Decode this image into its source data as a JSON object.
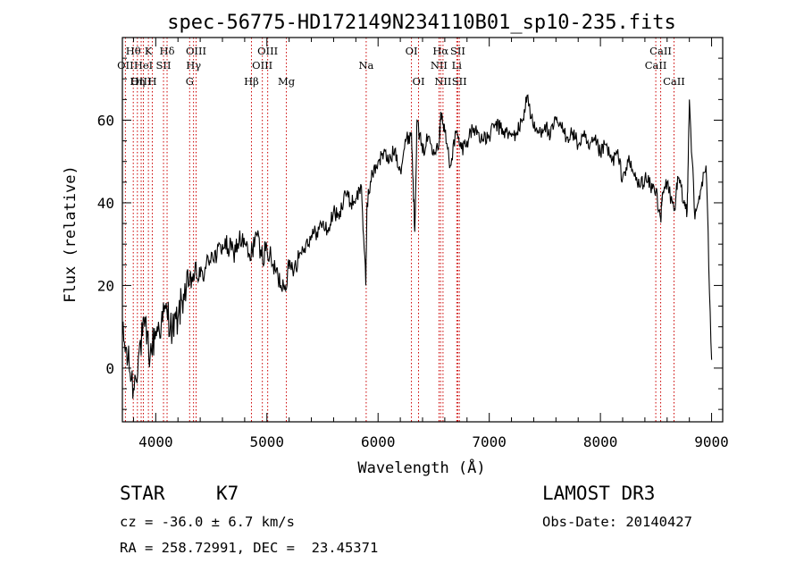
{
  "chart_data": {
    "type": "line",
    "title": "spec-56775-HD172149N234110B01_sp10-235.fits",
    "xlabel": "Wavelength (Å)",
    "ylabel": "Flux (relative)",
    "xlim": [
      3700,
      9100
    ],
    "ylim": [
      -13,
      80
    ],
    "xticks": [
      4000,
      5000,
      6000,
      7000,
      8000,
      9000
    ],
    "yticks": [
      0,
      20,
      40,
      60
    ],
    "series": [
      {
        "name": "flux",
        "x": [
          3700,
          3750,
          3800,
          3850,
          3900,
          3950,
          4000,
          4050,
          4100,
          4150,
          4200,
          4250,
          4300,
          4350,
          4400,
          4450,
          4500,
          4550,
          4600,
          4650,
          4700,
          4750,
          4800,
          4850,
          4900,
          4950,
          5000,
          5050,
          5100,
          5150,
          5200,
          5250,
          5300,
          5350,
          5400,
          5450,
          5500,
          5550,
          5600,
          5650,
          5700,
          5750,
          5800,
          5850,
          5890,
          5900,
          5950,
          6000,
          6050,
          6100,
          6150,
          6200,
          6250,
          6300,
          6330,
          6350,
          6400,
          6450,
          6500,
          6550,
          6563,
          6600,
          6650,
          6700,
          6750,
          6800,
          6850,
          6900,
          6950,
          7000,
          7050,
          7100,
          7150,
          7200,
          7250,
          7300,
          7340,
          7400,
          7450,
          7500,
          7550,
          7600,
          7650,
          7700,
          7750,
          7800,
          7850,
          7900,
          7950,
          8000,
          8050,
          8100,
          8150,
          8200,
          8250,
          8300,
          8350,
          8400,
          8450,
          8500,
          8542,
          8560,
          8600,
          8662,
          8700,
          8750,
          8780,
          8800,
          8850,
          8900,
          8950,
          9000
        ],
        "y": [
          8,
          2,
          -5,
          4,
          10,
          3,
          9,
          11,
          14,
          9,
          12,
          18,
          20,
          23,
          22,
          24,
          28,
          27,
          30,
          29,
          28,
          31,
          30,
          26,
          33,
          27,
          29,
          25,
          22,
          20,
          24,
          25,
          28,
          30,
          32,
          33,
          35,
          33,
          38,
          36,
          43,
          40,
          41,
          44,
          20,
          40,
          47,
          50,
          52,
          50,
          53,
          48,
          55,
          57,
          33,
          60,
          52,
          56,
          53,
          55,
          62,
          57,
          49,
          57,
          53,
          55,
          58,
          57,
          55,
          56,
          59,
          58,
          57,
          56,
          57,
          60,
          66,
          58,
          57,
          59,
          56,
          60,
          58,
          56,
          57,
          54,
          56,
          53,
          55,
          52,
          54,
          50,
          52,
          46,
          50,
          47,
          44,
          46,
          44,
          43,
          36,
          42,
          45,
          38,
          46,
          40,
          38,
          65,
          36,
          43,
          49,
          2
        ]
      }
    ],
    "lines": [
      {
        "label": "Hθ",
        "wave": 3798,
        "row": 1
      },
      {
        "label": "OII",
        "wave": 3727,
        "row": 2
      },
      {
        "label": "OIII",
        "wave": 3869,
        "row": 3
      },
      {
        "label": "K",
        "wave": 3934,
        "row": 1
      },
      {
        "label": "HeI",
        "wave": 3889,
        "row": 2
      },
      {
        "label": "Hη",
        "wave": 3835,
        "row": 3
      },
      {
        "label": "H",
        "wave": 3969,
        "row": 3
      },
      {
        "label": "Hδ",
        "wave": 4102,
        "row": 1
      },
      {
        "label": "SII",
        "wave": 4070,
        "row": 2
      },
      {
        "label": "OIII",
        "wave": 4363,
        "row": 1
      },
      {
        "label": "Hγ",
        "wave": 4340,
        "row": 2
      },
      {
        "label": "G",
        "wave": 4305,
        "row": 3
      },
      {
        "label": "Hβ",
        "wave": 4861,
        "row": 3
      },
      {
        "label": "OIII",
        "wave": 5007,
        "row": 1
      },
      {
        "label": "OIII",
        "wave": 4959,
        "row": 2
      },
      {
        "label": "Mg",
        "wave": 5175,
        "row": 3
      },
      {
        "label": "Na",
        "wave": 5893,
        "row": 2
      },
      {
        "label": "OI",
        "wave": 6300,
        "row": 1
      },
      {
        "label": "OI",
        "wave": 6364,
        "row": 3
      },
      {
        "label": "Hα",
        "wave": 6563,
        "row": 1
      },
      {
        "label": "NII",
        "wave": 6548,
        "row": 2
      },
      {
        "label": "NII",
        "wave": 6584,
        "row": 3
      },
      {
        "label": "SII",
        "wave": 6717,
        "row": 1
      },
      {
        "label": "Li",
        "wave": 6708,
        "row": 2
      },
      {
        "label": "SII",
        "wave": 6731,
        "row": 3
      },
      {
        "label": "CaII",
        "wave": 8542,
        "row": 1
      },
      {
        "label": "CaII",
        "wave": 8498,
        "row": 2
      },
      {
        "label": "CaII",
        "wave": 8662,
        "row": 3
      }
    ],
    "line_color": "#cc0000",
    "series_color": "#000000"
  },
  "info": {
    "object_type": "STAR",
    "subclass": "K7",
    "survey": "LAMOST DR3",
    "redshift": "cz = -36.0 ± 6.7 km/s",
    "obs_date": "Obs-Date: 20140427",
    "coords": "RA = 258.72991, DEC =  23.45371"
  }
}
